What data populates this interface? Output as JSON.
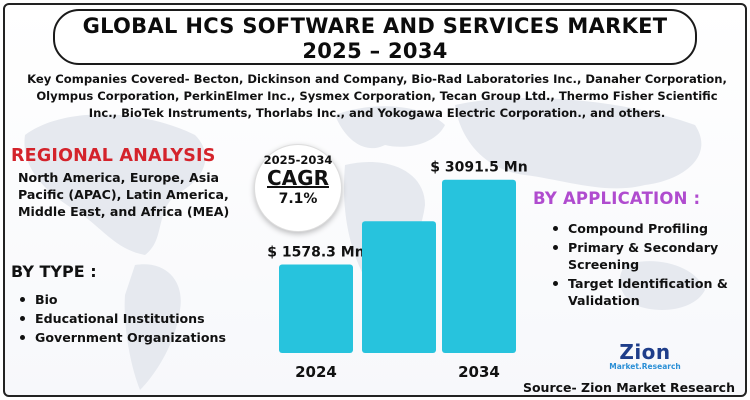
{
  "header": {
    "title_line1": "GLOBAL HCS SOFTWARE AND SERVICES MARKET",
    "title_line2": "2025 – 2034"
  },
  "companies_text": "Key Companies Covered- Becton, Dickinson and Company, Bio-Rad Laboratories Inc., Danaher Corporation, Olympus Corporation, PerkinElmer Inc., Sysmex Corporation, Tecan Group Ltd., Thermo Fisher Scientific Inc., BioTek Instruments, Thorlabs Inc., and Yokogawa Electric Corporation., and others.",
  "regional": {
    "title": "REGIONAL ANALYSIS",
    "text": "North America, Europe, Asia Pacific (APAC), Latin America, Middle East, and Africa (MEA)"
  },
  "by_type": {
    "title": "BY TYPE :",
    "items": [
      "Bio",
      "Educational Institutions",
      "Government Organizations"
    ]
  },
  "cagr": {
    "years": "2025-2034",
    "label": "CAGR",
    "value": "7.1%"
  },
  "by_application": {
    "title": "BY APPLICATION :",
    "items": [
      "Compound Profiling",
      "Primary & Secondary Screening",
      "Target Identification & Validation"
    ]
  },
  "source": "Source- Zion Market Research",
  "logo": {
    "main": "Zion",
    "sub": "Market.Research"
  },
  "colors": {
    "bar": "#27c3dd",
    "regional_title": "#d4232b",
    "application_title": "#b04ccf"
  },
  "chart_data": {
    "type": "bar",
    "categories": [
      "2024",
      "",
      "2034"
    ],
    "values": [
      1578.3,
      2350,
      3091.5
    ],
    "data_labels": [
      "$ 1578.3 Mn",
      "",
      "$ 3091.5 Mn"
    ],
    "ylim": [
      0,
      3300
    ],
    "grid": false,
    "legend": "none"
  }
}
